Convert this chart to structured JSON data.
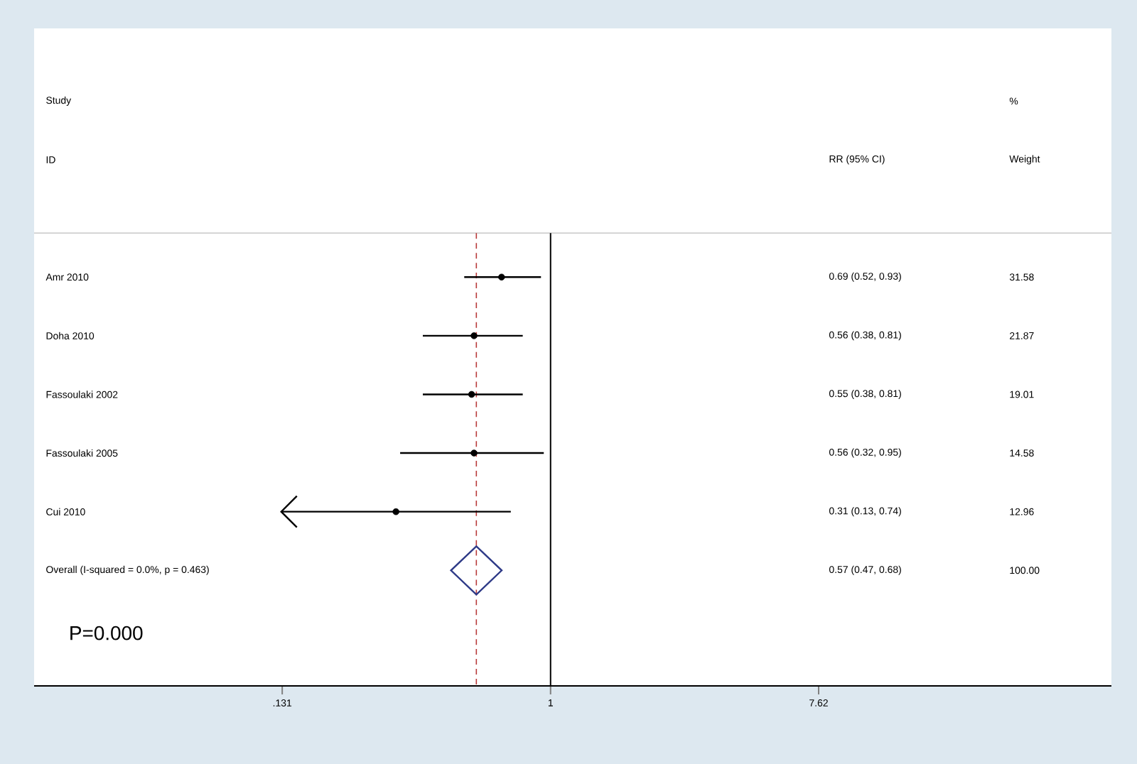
{
  "chart_data": {
    "type": "scatter",
    "orientation": "horizontal",
    "log": "x",
    "categories": [
      "Amr 2010",
      "Doha 2010",
      "Fassoulaki 2002",
      "Fassoulaki 2005",
      "Cui 2010",
      "Overall  (I-squared = 0.0%, p = 0.463)"
    ],
    "series": [
      {
        "color": "#000000",
        "marker": "circle",
        "values": [
          0.69,
          0.56,
          0.55,
          0.56,
          0.31,
          null
        ],
        "errors": [
          [
            0.52,
            0.93
          ],
          [
            0.38,
            0.81
          ],
          [
            0.38,
            0.81
          ],
          [
            0.32,
            0.95
          ],
          [
            0.13,
            0.74
          ],
          null
        ]
      },
      {
        "color": "#2e3a87",
        "marker": "diamond",
        "values": [
          null,
          null,
          null,
          null,
          null,
          0.57
        ]
      }
    ],
    "xlim": [
      0.02,
      70
    ],
    "xticks": [
      {
        "value": 0.131,
        "label": ".131"
      },
      1,
      {
        "value": 7.62,
        "label": "7.62"
      }
    ],
    "ref_lines": [
      {
        "axis": "x",
        "value": 1,
        "color": "#000000",
        "line_style": "solid"
      },
      {
        "axis": "x",
        "value": 0.57,
        "color": "#b83a3a",
        "line_style": "dashed"
      }
    ],
    "annotations": [
      "Study",
      "ID",
      "RR (95% CI)",
      "%",
      "Weight",
      "0.69 (0.52, 0.93)",
      "0.56 (0.38, 0.81)",
      "0.55 (0.38, 0.81)",
      "0.56 (0.32, 0.95)",
      "0.31 (0.13, 0.74)",
      "0.57 (0.47, 0.68)",
      "31.58",
      "21.87",
      "19.01",
      "14.58",
      "12.96",
      "100.00",
      "P=0.000"
    ]
  }
}
